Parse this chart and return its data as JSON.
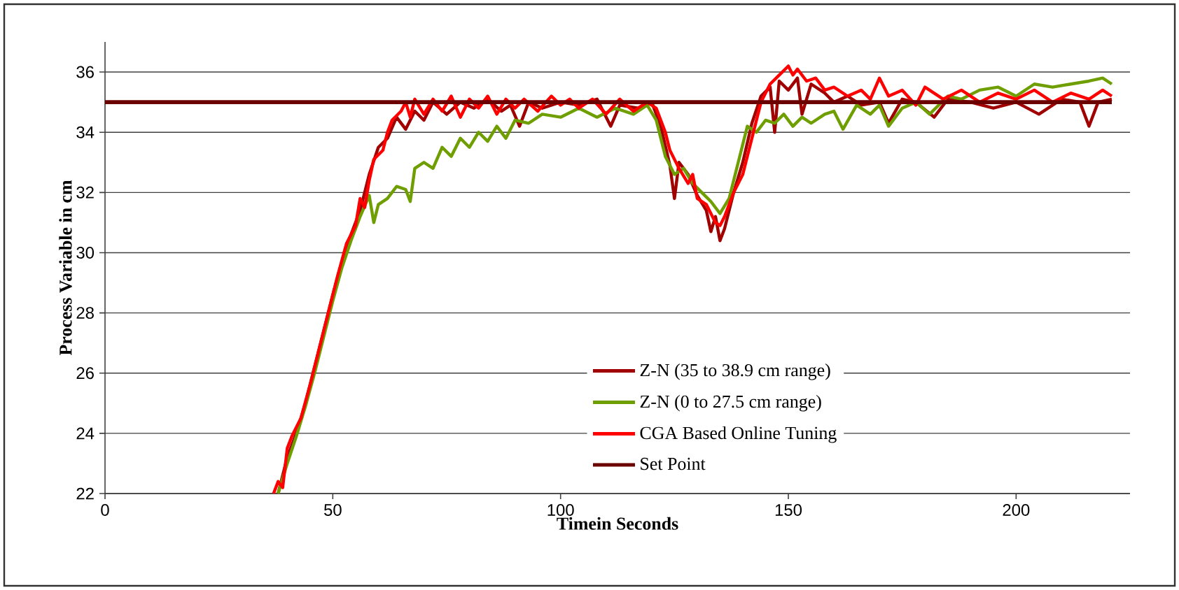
{
  "chart_data": {
    "type": "line",
    "xlabel": "Timein Seconds",
    "ylabel": "Process Variable in cm",
    "xlim": [
      0,
      225
    ],
    "ylim": [
      22,
      37
    ],
    "xticks": [
      0,
      50,
      100,
      150,
      200
    ],
    "yticks": [
      22,
      24,
      26,
      28,
      30,
      32,
      34,
      36
    ],
    "grid": "y",
    "legend": "bottom",
    "marker": "none",
    "line_style": "solid",
    "series": [
      {
        "name": "Z-N (35 to 38.9 cm range)",
        "color": "#a00000",
        "x": [
          38,
          40,
          42,
          44,
          46,
          48,
          50,
          52,
          54,
          56,
          58,
          60,
          62,
          64,
          66,
          68,
          70,
          72,
          75,
          78,
          81,
          84,
          87,
          89,
          91,
          93,
          96,
          100,
          104,
          108,
          111,
          113,
          117,
          120,
          122,
          124,
          125,
          126,
          128,
          130,
          132,
          133,
          134,
          135,
          136,
          138,
          140,
          142,
          144,
          146,
          147,
          148,
          150,
          152,
          153,
          155,
          158,
          160,
          163,
          166,
          170,
          172,
          175,
          178,
          182,
          185,
          190,
          195,
          200,
          205,
          210,
          214,
          216,
          218,
          221
        ],
        "values": [
          22.0,
          23.2,
          24.0,
          25.0,
          26.2,
          27.4,
          28.6,
          29.7,
          30.6,
          31.4,
          32.6,
          33.5,
          33.8,
          34.5,
          34.1,
          34.7,
          34.4,
          35.0,
          34.6,
          35.0,
          34.8,
          35.1,
          34.7,
          34.9,
          34.2,
          35.0,
          34.8,
          35.0,
          34.9,
          35.1,
          34.2,
          34.9,
          34.8,
          35.0,
          34.2,
          32.9,
          31.8,
          33.0,
          32.6,
          31.9,
          31.4,
          30.7,
          31.2,
          30.4,
          30.8,
          32.0,
          33.0,
          34.3,
          35.2,
          35.5,
          34.0,
          35.7,
          35.4,
          35.8,
          34.6,
          35.6,
          35.3,
          35.0,
          35.2,
          34.9,
          35.0,
          34.3,
          35.1,
          35.0,
          34.5,
          35.1,
          35.0,
          34.8,
          35.0,
          34.6,
          35.1,
          35.0,
          34.2,
          35.0,
          35.1
        ]
      },
      {
        "name": "Z-N (0 to 27.5 cm range)",
        "color": "#6e9e00",
        "x": [
          38,
          40,
          42,
          44,
          46,
          48,
          50,
          52,
          54,
          56,
          58,
          59,
          60,
          62,
          64,
          66,
          67,
          68,
          70,
          72,
          74,
          76,
          78,
          80,
          82,
          84,
          86,
          88,
          90,
          93,
          96,
          100,
          104,
          108,
          112,
          116,
          119,
          121,
          123,
          125,
          127,
          129,
          131,
          133,
          135,
          137,
          139,
          141,
          143,
          145,
          147,
          149,
          151,
          153,
          155,
          158,
          160,
          162,
          165,
          168,
          170,
          172,
          175,
          178,
          181,
          185,
          188,
          192,
          196,
          200,
          204,
          208,
          212,
          216,
          219,
          221
        ],
        "values": [
          22.0,
          23.0,
          23.9,
          24.9,
          26.0,
          27.2,
          28.4,
          29.5,
          30.4,
          31.2,
          31.9,
          31.0,
          31.6,
          31.8,
          32.2,
          32.1,
          31.7,
          32.8,
          33.0,
          32.8,
          33.5,
          33.2,
          33.8,
          33.5,
          34.0,
          33.7,
          34.2,
          33.8,
          34.4,
          34.3,
          34.6,
          34.5,
          34.8,
          34.5,
          34.8,
          34.6,
          34.9,
          34.4,
          33.2,
          32.6,
          32.8,
          32.3,
          32.0,
          31.7,
          31.3,
          31.8,
          33.0,
          34.2,
          34.0,
          34.4,
          34.3,
          34.6,
          34.2,
          34.5,
          34.3,
          34.6,
          34.7,
          34.1,
          34.9,
          34.6,
          34.9,
          34.2,
          34.8,
          35.0,
          34.6,
          35.2,
          35.1,
          35.4,
          35.5,
          35.2,
          35.6,
          35.5,
          35.6,
          35.7,
          35.8,
          35.6
        ]
      },
      {
        "name": "CGA Based Online Tuning",
        "color": "#ff0000",
        "x": [
          37,
          38,
          39,
          40,
          41,
          43,
          45,
          47,
          49,
          51,
          53,
          55,
          56,
          57,
          58,
          59,
          61,
          62,
          63,
          65,
          66,
          67,
          68,
          70,
          72,
          74,
          76,
          78,
          80,
          82,
          84,
          86,
          88,
          90,
          92,
          95,
          98,
          100,
          102,
          104,
          107,
          110,
          113,
          116,
          119,
          121,
          123,
          124,
          126,
          128,
          129,
          130,
          132,
          134,
          135,
          136,
          138,
          140,
          142,
          144,
          146,
          148,
          150,
          151,
          152,
          154,
          156,
          158,
          160,
          163,
          166,
          168,
          170,
          172,
          175,
          178,
          180,
          184,
          188,
          192,
          196,
          200,
          204,
          208,
          212,
          216,
          219,
          221
        ],
        "values": [
          22.0,
          22.4,
          22.2,
          23.5,
          23.9,
          24.5,
          25.6,
          26.8,
          28.0,
          29.2,
          30.3,
          30.9,
          31.8,
          31.5,
          32.4,
          33.1,
          33.4,
          34.0,
          34.4,
          34.7,
          35.0,
          34.5,
          35.1,
          34.6,
          35.1,
          34.7,
          35.2,
          34.5,
          35.1,
          34.8,
          35.2,
          34.6,
          35.1,
          34.8,
          35.1,
          34.7,
          35.2,
          34.9,
          35.1,
          34.8,
          35.1,
          34.6,
          35.1,
          34.7,
          35.0,
          34.8,
          34.0,
          33.4,
          32.8,
          32.3,
          32.6,
          31.8,
          31.6,
          31.0,
          30.9,
          31.2,
          32.0,
          32.6,
          33.8,
          35.0,
          35.6,
          35.9,
          36.2,
          35.9,
          36.1,
          35.7,
          35.8,
          35.4,
          35.5,
          35.2,
          35.4,
          35.1,
          35.8,
          35.2,
          35.4,
          34.9,
          35.5,
          35.1,
          35.4,
          35.0,
          35.3,
          35.1,
          35.4,
          35.0,
          35.3,
          35.1,
          35.4,
          35.2
        ]
      },
      {
        "name": "Set Point",
        "color": "#6b0000",
        "x": [
          0,
          221
        ],
        "values": [
          35,
          35
        ]
      }
    ]
  }
}
